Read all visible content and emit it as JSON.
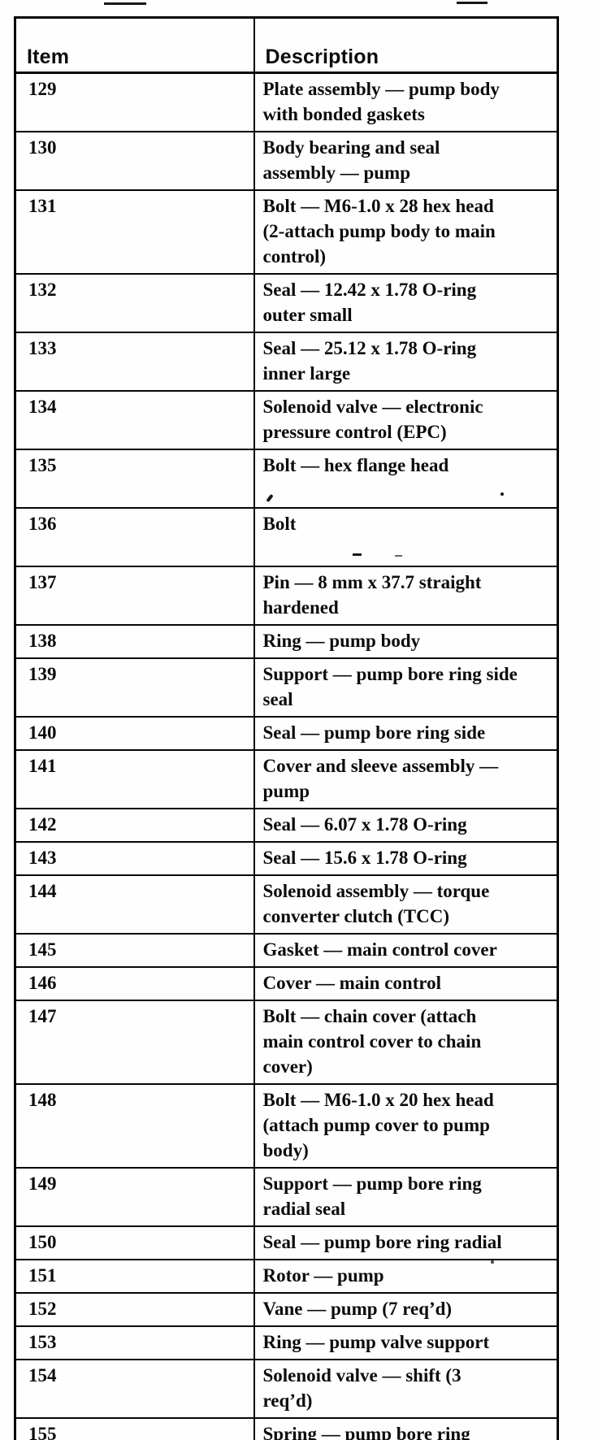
{
  "table": {
    "headers": {
      "item": "Item",
      "description": "Description"
    },
    "rows": [
      {
        "item": "129",
        "description": "Plate assembly — pump body\nwith bonded gaskets"
      },
      {
        "item": "130",
        "description": "Body bearing and seal\nassembly — pump"
      },
      {
        "item": "131",
        "description": "Bolt — M6-1.0 x 28 hex head\n(2-attach pump body to main\ncontrol)"
      },
      {
        "item": "132",
        "description": "Seal — 12.42 x 1.78 O-ring\nouter small"
      },
      {
        "item": "133",
        "description": "Seal — 25.12 x 1.78 O-ring\ninner large"
      },
      {
        "item": "134",
        "description": "Solenoid valve — electronic\npressure control (EPC)"
      },
      {
        "item": "135",
        "description": "Bolt — hex flange head",
        "tall": true
      },
      {
        "item": "136",
        "description": "Bolt",
        "tall": true
      },
      {
        "item": "137",
        "description": "Pin — 8 mm x 37.7 straight\nhardened"
      },
      {
        "item": "138",
        "description": "Ring — pump body"
      },
      {
        "item": "139",
        "description": "Support — pump bore ring side\nseal"
      },
      {
        "item": "140",
        "description": "Seal — pump bore ring side"
      },
      {
        "item": "141",
        "description": "Cover and sleeve assembly —\npump"
      },
      {
        "item": "142",
        "description": "Seal — 6.07 x 1.78 O-ring"
      },
      {
        "item": "143",
        "description": "Seal — 15.6 x 1.78 O-ring"
      },
      {
        "item": "144",
        "description": "Solenoid assembly — torque\nconverter clutch (TCC)"
      },
      {
        "item": "145",
        "description": "Gasket — main control cover"
      },
      {
        "item": "146",
        "description": "Cover — main control"
      },
      {
        "item": "147",
        "description": "Bolt — chain cover (attach\nmain control cover to chain\ncover)"
      },
      {
        "item": "148",
        "description": "Bolt — M6-1.0 x 20 hex head\n(attach pump cover to pump\nbody)"
      },
      {
        "item": "149",
        "description": "Support — pump bore ring\nradial seal"
      },
      {
        "item": "150",
        "description": "Seal — pump bore ring radial"
      },
      {
        "item": "151",
        "description": "Rotor — pump"
      },
      {
        "item": "152",
        "description": "Vane — pump (7 req’d)"
      },
      {
        "item": "153",
        "description": "Ring — pump valve support"
      },
      {
        "item": "154",
        "description": "Solenoid valve — shift (3\nreq’d)"
      },
      {
        "item": "155",
        "description": "Spring — pump bore ring"
      }
    ]
  }
}
